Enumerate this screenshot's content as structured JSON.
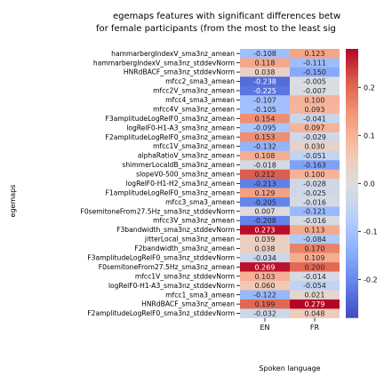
{
  "chart_data": {
    "type": "heatmap",
    "title_line1": "egemaps features with significant differences betw",
    "title_line2": "for female participants (from the most to the least sig",
    "xlabel": "Spoken language",
    "ylabel": "egemaps",
    "columns": [
      "EN",
      "FR"
    ],
    "rows": [
      {
        "label": "hammarbergIndexV_sma3nz_amean",
        "values": [
          "-0.108",
          "0.123"
        ]
      },
      {
        "label": "hammarbergIndexV_sma3nz_stddevNorm",
        "values": [
          "0.118",
          "-0.111"
        ]
      },
      {
        "label": "HNRdBACF_sma3nz_stddevNorm",
        "values": [
          "0.038",
          "-0.150"
        ]
      },
      {
        "label": "mfcc2_sma3_amean",
        "values": [
          "-0.238",
          "-0.005"
        ]
      },
      {
        "label": "mfcc2V_sma3nz_amean",
        "values": [
          "-0.225",
          "-0.007"
        ]
      },
      {
        "label": "mfcc4_sma3_amean",
        "values": [
          "-0.107",
          "0.100"
        ]
      },
      {
        "label": "mfcc4V_sma3nz_amean",
        "values": [
          "-0.105",
          "0.093"
        ]
      },
      {
        "label": "F3amplitudeLogRelF0_sma3nz_amean",
        "values": [
          "0.154",
          "-0.041"
        ]
      },
      {
        "label": "logRelF0-H1-A3_sma3nz_amean",
        "values": [
          "-0.095",
          "0.097"
        ]
      },
      {
        "label": "F2amplitudeLogRelF0_sma3nz_amean",
        "values": [
          "0.153",
          "-0.029"
        ]
      },
      {
        "label": "mfcc1V_sma3nz_amean",
        "values": [
          "-0.132",
          "0.030"
        ]
      },
      {
        "label": "alphaRatioV_sma3nz_amean",
        "values": [
          "0.108",
          "-0.051"
        ]
      },
      {
        "label": "shimmerLocaldB_sma3nz_amean",
        "values": [
          "-0.018",
          "-0.163"
        ]
      },
      {
        "label": "slopeV0-500_sma3nz_amean",
        "values": [
          "0.212",
          "0.100"
        ]
      },
      {
        "label": "logRelF0-H1-H2_sma3nz_amean",
        "values": [
          "-0.213",
          "-0.028"
        ]
      },
      {
        "label": "F1amplitudeLogRelF0_sma3nz_amean",
        "values": [
          "0.129",
          "-0.025"
        ]
      },
      {
        "label": "mfcc3_sma3_amean",
        "values": [
          "-0.205",
          "-0.016"
        ]
      },
      {
        "label": "F0semitoneFrom27.5Hz_sma3nz_stddevNorm",
        "values": [
          "0.007",
          "-0.121"
        ]
      },
      {
        "label": "mfcc3V_sma3nz_amean",
        "values": [
          "-0.208",
          "-0.016"
        ]
      },
      {
        "label": "F3bandwidth_sma3nz_stddevNorm",
        "values": [
          "0.273",
          "0.113"
        ]
      },
      {
        "label": "jitterLocal_sma3nz_amean",
        "values": [
          "0.039",
          "-0.084"
        ]
      },
      {
        "label": "F2bandwidth_sma3nz_amean",
        "values": [
          "0.038",
          "0.170"
        ]
      },
      {
        "label": "F3amplitudeLogRelF0_sma3nz_stddevNorm",
        "values": [
          "-0.034",
          "0.109"
        ]
      },
      {
        "label": "F0semitoneFrom27.5Hz_sma3nz_amean",
        "values": [
          "0.269",
          "0.200"
        ]
      },
      {
        "label": "mfcc1V_sma3nz_stddevNorm",
        "values": [
          "0.103",
          "-0.014"
        ]
      },
      {
        "label": "logRelF0-H1-A3_sma3nz_stddevNorm",
        "values": [
          "0.060",
          "-0.054"
        ]
      },
      {
        "label": "mfcc1_sma3_amean",
        "values": [
          "-0.122",
          "0.021"
        ]
      },
      {
        "label": "HNRdBACF_sma3nz_amean",
        "values": [
          "0.199",
          "0.279"
        ]
      },
      {
        "label": "F2amplitudeLogRelF0_sma3nz_stddevNorm",
        "values": [
          "-0.032",
          "0.048"
        ]
      }
    ],
    "colorbar": {
      "colormap": "coolwarm",
      "range": [
        -0.28,
        0.28
      ],
      "ticks": [
        "0.2",
        "0.1",
        "0.0",
        "-0.1",
        "-0.2"
      ],
      "tick_values": [
        0.2,
        0.1,
        0.0,
        -0.1,
        -0.2
      ]
    }
  }
}
